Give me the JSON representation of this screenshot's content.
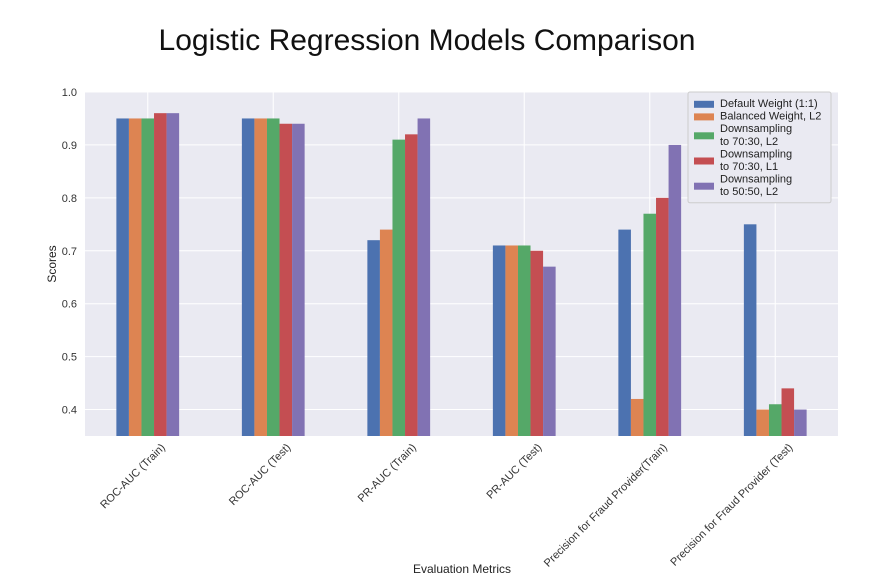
{
  "chart_data": {
    "type": "bar",
    "title": "Logistic Regression Models Comparison",
    "xlabel": "Evaluation Metrics",
    "ylabel": "Scores",
    "ylim": [
      0.35,
      1.0
    ],
    "yticks": [
      "0.4",
      "0.5",
      "0.6",
      "0.7",
      "0.8",
      "0.9",
      "1.0"
    ],
    "grid": true,
    "legend_position": "top-right",
    "categories": [
      "ROC-AUC (Train)",
      "ROC-AUC (Test)",
      "PR-AUC (Train)",
      "PR-AUC (Test)",
      "Precision for Fraud Provider(Train)",
      "Precision for Fraud Provider (Test)"
    ],
    "series": [
      {
        "name": "Default Weight (1:1)",
        "color": "#4c72b0",
        "values": [
          0.95,
          0.95,
          0.72,
          0.71,
          0.74,
          0.75
        ]
      },
      {
        "name": "Balanced Weight, L2",
        "color": "#dd8452",
        "values": [
          0.95,
          0.95,
          0.74,
          0.71,
          0.42,
          0.4
        ]
      },
      {
        "name": "Downsampling\nto 70:30, L2",
        "color": "#55a868",
        "values": [
          0.95,
          0.95,
          0.91,
          0.71,
          0.77,
          0.41
        ]
      },
      {
        "name": "Downsampling\nto 70:30, L1",
        "color": "#c44e52",
        "values": [
          0.96,
          0.94,
          0.92,
          0.7,
          0.8,
          0.44
        ]
      },
      {
        "name": "Downsampling\nto 50:50, L2",
        "color": "#8172b3",
        "values": [
          0.96,
          0.94,
          0.95,
          0.67,
          0.9,
          0.4
        ]
      }
    ]
  }
}
